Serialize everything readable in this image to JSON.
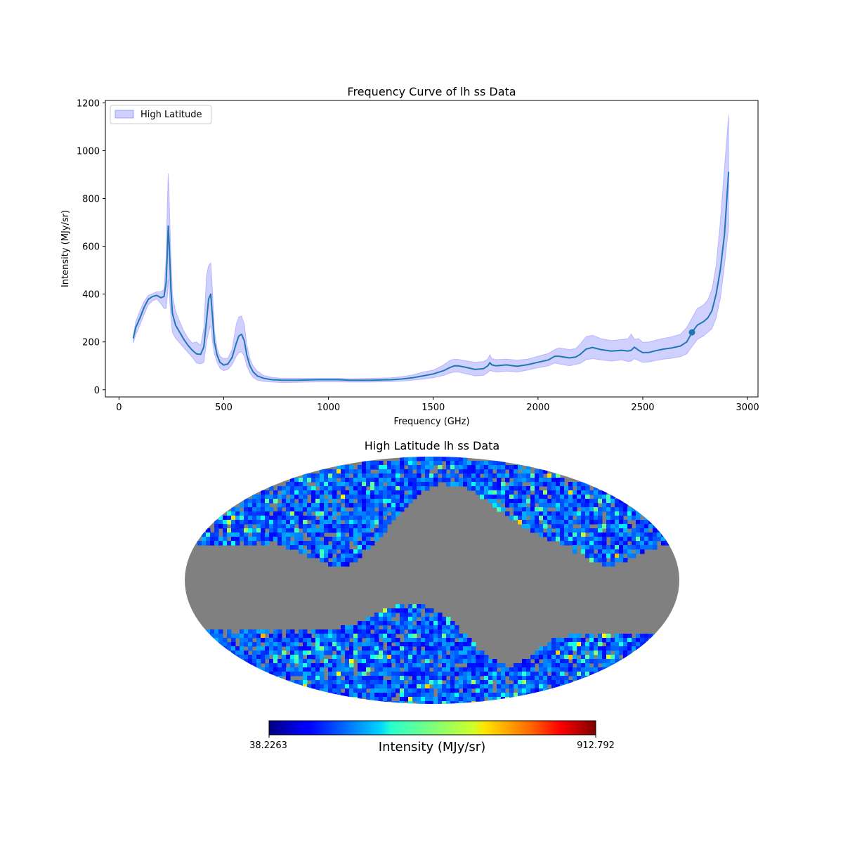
{
  "chart_data": [
    {
      "type": "line",
      "title": "Frequency Curve of lh ss Data",
      "xlabel": "Frequency (GHz)",
      "ylabel": "Intensity (MJy/sr)",
      "xlim": [
        -65,
        3050
      ],
      "ylim": [
        -30,
        1210
      ],
      "xticks": [
        0,
        500,
        1000,
        1500,
        2000,
        2500,
        3000
      ],
      "yticks": [
        0,
        200,
        400,
        600,
        800,
        1000,
        1200
      ],
      "legend": {
        "position": "upper-left",
        "entries": [
          "High Latitude"
        ]
      },
      "series": [
        {
          "name": "High Latitude",
          "color": "#1f77b4",
          "band_color": "#6464ff",
          "x": [
            68,
            80,
            100,
            120,
            140,
            160,
            180,
            200,
            215,
            225,
            230,
            235,
            240,
            248,
            255,
            270,
            290,
            310,
            330,
            350,
            370,
            390,
            405,
            418,
            428,
            438,
            446,
            455,
            468,
            482,
            500,
            520,
            540,
            560,
            572,
            585,
            598,
            610,
            625,
            640,
            660,
            690,
            730,
            780,
            850,
            950,
            1050,
            1100,
            1200,
            1300,
            1350,
            1400,
            1450,
            1500,
            1550,
            1580,
            1600,
            1620,
            1650,
            1700,
            1740,
            1760,
            1770,
            1780,
            1800,
            1850,
            1900,
            1950,
            2000,
            2050,
            2080,
            2100,
            2150,
            2180,
            2200,
            2230,
            2260,
            2300,
            2350,
            2400,
            2430,
            2445,
            2460,
            2480,
            2500,
            2530,
            2560,
            2600,
            2640,
            2680,
            2710,
            2735,
            2760,
            2790,
            2810,
            2830,
            2850,
            2870,
            2890,
            2910
          ],
          "y": [
            215,
            260,
            300,
            345,
            378,
            390,
            395,
            385,
            390,
            450,
            560,
            685,
            600,
            420,
            320,
            270,
            240,
            210,
            185,
            165,
            150,
            148,
            180,
            290,
            380,
            400,
            310,
            200,
            145,
            115,
            103,
            108,
            135,
            195,
            225,
            232,
            205,
            145,
            100,
            75,
            58,
            48,
            42,
            40,
            40,
            42,
            42,
            40,
            40,
            42,
            45,
            50,
            58,
            66,
            80,
            93,
            100,
            100,
            95,
            85,
            88,
            100,
            113,
            104,
            100,
            104,
            98,
            105,
            115,
            125,
            140,
            140,
            133,
            137,
            147,
            170,
            177,
            168,
            162,
            165,
            162,
            165,
            178,
            165,
            155,
            156,
            163,
            170,
            175,
            183,
            200,
            240,
            270,
            285,
            300,
            330,
            400,
            500,
            650,
            912
          ],
          "upper": [
            225,
            285,
            330,
            370,
            395,
            402,
            410,
            410,
            420,
            550,
            750,
            905,
            780,
            560,
            400,
            330,
            285,
            245,
            215,
            195,
            200,
            185,
            260,
            480,
            520,
            530,
            420,
            250,
            175,
            140,
            130,
            132,
            170,
            275,
            305,
            308,
            275,
            190,
            130,
            100,
            78,
            60,
            52,
            48,
            48,
            48,
            48,
            46,
            48,
            50,
            55,
            62,
            74,
            82,
            104,
            123,
            128,
            127,
            122,
            115,
            118,
            128,
            146,
            130,
            126,
            128,
            124,
            128,
            140,
            152,
            168,
            175,
            168,
            172,
            190,
            222,
            228,
            214,
            206,
            210,
            214,
            233,
            211,
            214,
            198,
            200,
            207,
            215,
            222,
            232,
            260,
            300,
            340,
            355,
            375,
            420,
            520,
            700,
            930,
            1150
          ],
          "lower": [
            195,
            230,
            270,
            315,
            355,
            372,
            380,
            360,
            340,
            340,
            380,
            460,
            400,
            300,
            240,
            215,
            195,
            175,
            155,
            135,
            112,
            108,
            115,
            200,
            240,
            270,
            200,
            150,
            115,
            90,
            80,
            85,
            105,
            140,
            155,
            158,
            140,
            100,
            70,
            52,
            40,
            35,
            32,
            30,
            31,
            33,
            33,
            32,
            32,
            34,
            36,
            40,
            44,
            50,
            60,
            70,
            74,
            74,
            68,
            58,
            60,
            72,
            80,
            78,
            74,
            78,
            74,
            82,
            92,
            100,
            112,
            108,
            100,
            106,
            110,
            126,
            130,
            125,
            120,
            125,
            118,
            120,
            130,
            122,
            115,
            116,
            122,
            128,
            132,
            138,
            150,
            180,
            210,
            225,
            240,
            255,
            300,
            380,
            520,
            680
          ]
        }
      ],
      "annotations": [
        {
          "type": "marker",
          "x": 2735,
          "y": 240
        }
      ]
    },
    {
      "type": "heatmap",
      "title": "High Latitude lh ss Data",
      "projection": "Mollweide",
      "colormap": "jet",
      "masked_color": "#808080",
      "colorbar": {
        "min_label": "38.2263",
        "max_label": "912.792",
        "label": "Intensity (MJy/sr)",
        "position": "bottom"
      }
    }
  ]
}
